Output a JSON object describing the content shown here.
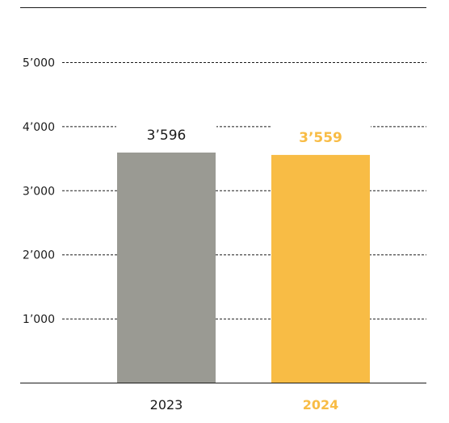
{
  "chart_data": {
    "type": "bar",
    "title": "",
    "xlabel": "",
    "ylabel": "",
    "categories": [
      "2023",
      "2024"
    ],
    "values": [
      3596,
      3559
    ],
    "value_labels": [
      "3’596",
      "3’559"
    ],
    "yticks": [
      1000,
      2000,
      3000,
      4000,
      5000
    ],
    "ytick_labels": [
      "1’000",
      "2’000",
      "3’000",
      "4’000",
      "5’000"
    ],
    "ylim": [
      0,
      5850
    ],
    "grid": true,
    "grid_style": "dashed",
    "bar_colors": [
      "#9a9a93",
      "#f8bc45"
    ],
    "value_label_colors": [
      "#1a1a1a",
      "#f8bc45"
    ],
    "category_label_colors": [
      "#1a1a1a",
      "#f8bc45"
    ],
    "highlight_index": 1
  }
}
